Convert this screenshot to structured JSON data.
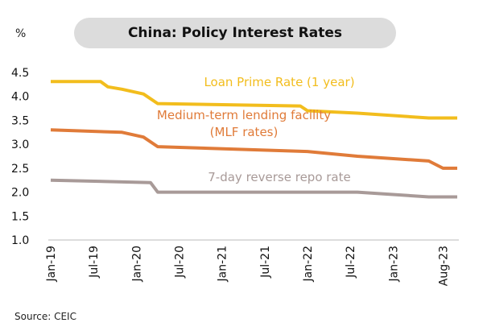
{
  "chart_data": {
    "type": "line",
    "title": "China: Policy Interest Rates",
    "unit_label": "%",
    "source": "Source: CEIC",
    "grid": false,
    "ylim": [
      1.0,
      4.5
    ],
    "y_ticks": [
      "4.5",
      "4.0",
      "3.5",
      "3.0",
      "2.5",
      "2.0",
      "1.5",
      "1.0"
    ],
    "x_range": [
      "2019-01",
      "2023-10"
    ],
    "x_ticks": [
      "Jan-19",
      "Jul-19",
      "Jan-20",
      "Jul-20",
      "Jan-21",
      "Jul-21",
      "Jan-22",
      "Jul-22",
      "Jan-23",
      "Aug-23"
    ],
    "series": [
      {
        "name": "Loan Prime Rate (1 year)",
        "label_lines": [
          "Loan Prime Rate (1 year)"
        ],
        "color": "#f2bd1d",
        "points": [
          [
            "2019-01",
            4.31
          ],
          [
            "2019-08",
            4.31
          ],
          [
            "2019-09",
            4.2
          ],
          [
            "2019-11",
            4.15
          ],
          [
            "2020-02",
            4.05
          ],
          [
            "2020-04",
            3.85
          ],
          [
            "2021-12",
            3.8
          ],
          [
            "2022-01",
            3.7
          ],
          [
            "2022-08",
            3.65
          ],
          [
            "2023-06",
            3.55
          ],
          [
            "2023-10",
            3.55
          ]
        ]
      },
      {
        "name": "Medium-term lending facility (MLF rates)",
        "label_lines": [
          "Medium-term lending facility",
          "(MLF rates)"
        ],
        "color": "#e07b39",
        "points": [
          [
            "2019-01",
            3.3
          ],
          [
            "2019-11",
            3.25
          ],
          [
            "2020-02",
            3.15
          ],
          [
            "2020-04",
            2.95
          ],
          [
            "2022-01",
            2.85
          ],
          [
            "2022-08",
            2.75
          ],
          [
            "2023-06",
            2.65
          ],
          [
            "2023-08",
            2.5
          ],
          [
            "2023-10",
            2.5
          ]
        ]
      },
      {
        "name": "7-day reverse repo rate",
        "label_lines": [
          "7-day reverse repo rate"
        ],
        "color": "#a89a98",
        "points": [
          [
            "2019-01",
            2.25
          ],
          [
            "2020-03",
            2.2
          ],
          [
            "2020-04",
            2.0
          ],
          [
            "2022-08",
            2.0
          ],
          [
            "2023-06",
            1.9
          ],
          [
            "2023-10",
            1.9
          ]
        ]
      }
    ]
  }
}
